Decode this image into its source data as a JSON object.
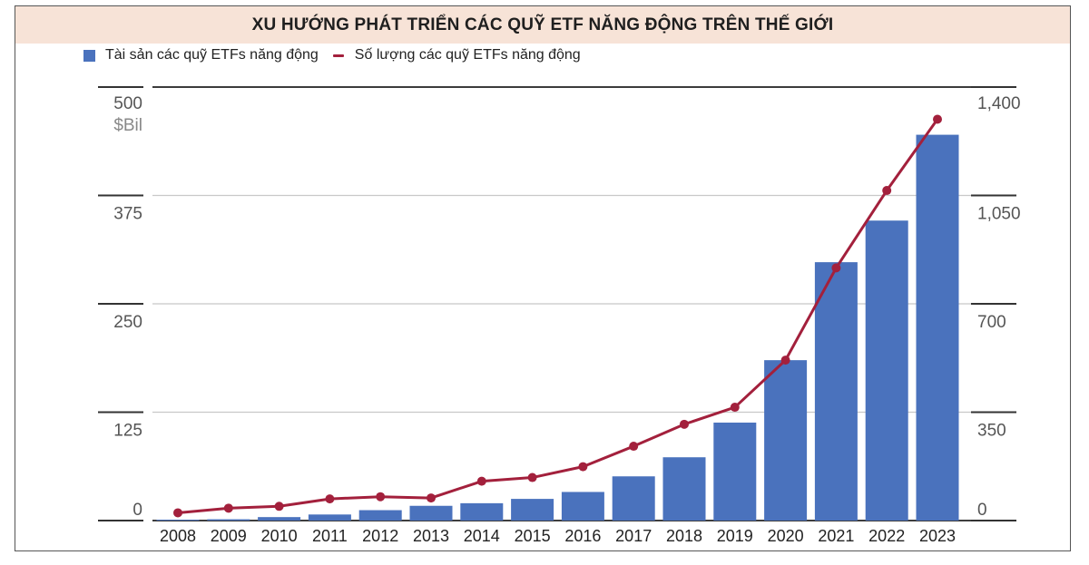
{
  "title": "XU HƯỚNG PHÁT TRIỂN CÁC QUỸ ETF NĂNG ĐỘNG TRÊN THẾ GIỚI",
  "legend": {
    "bar_label": "Tài sản các quỹ ETFs năng động",
    "line_label": "Số lượng các quỹ ETFs năng động"
  },
  "colors": {
    "bar": "#4a72bd",
    "line": "#a3203c",
    "title_bg": "#f7e3d7"
  },
  "chart_data": {
    "type": "bar",
    "title": "XU HƯỚNG PHÁT TRIỂN CÁC QUỸ ETF NĂNG ĐỘNG TRÊN THẾ GIỚI",
    "categories": [
      "2008",
      "2009",
      "2010",
      "2011",
      "2012",
      "2013",
      "2014",
      "2015",
      "2016",
      "2017",
      "2018",
      "2019",
      "2020",
      "2021",
      "2022",
      "2023"
    ],
    "series": [
      {
        "name": "Tài sản các quỹ ETFs năng động",
        "type": "bar",
        "axis": "left",
        "values": [
          1,
          1.5,
          4,
          7,
          12,
          17,
          20,
          25,
          33,
          51,
          73,
          113,
          185,
          298,
          346,
          445
        ]
      },
      {
        "name": "Số lượng các quỹ ETFs năng động",
        "type": "line",
        "axis": "right",
        "values": [
          25,
          40,
          46,
          70,
          77,
          73,
          127,
          139,
          174,
          240,
          311,
          366,
          518,
          816,
          1066,
          1296
        ]
      }
    ],
    "y_left": {
      "unit": "$Bil",
      "ticks": [
        "0",
        "125",
        "250",
        "375",
        "500"
      ],
      "ylim": [
        0,
        500
      ]
    },
    "y_right": {
      "ticks": [
        "0",
        "350",
        "700",
        "1,050",
        "1,400"
      ],
      "ylim": [
        0,
        1400
      ]
    },
    "grid": true,
    "legend_position": "top-left"
  }
}
